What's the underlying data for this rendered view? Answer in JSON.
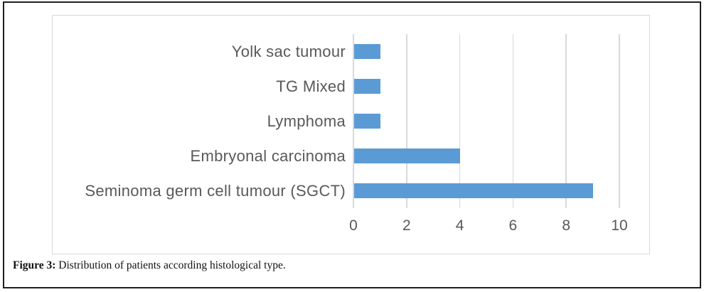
{
  "figure": {
    "caption": {
      "label": "Figure 3:",
      "text": " Distribution of patients according histological type."
    }
  },
  "chart_data": {
    "type": "bar",
    "orientation": "horizontal",
    "title": "",
    "xlabel": "",
    "ylabel": "",
    "categories": [
      "Yolk sac tumour",
      "TG Mixed",
      "Lymphoma",
      "Embryonal carcinoma",
      "Seminoma germ cell tumour (SGCT)"
    ],
    "values": [
      1,
      1,
      1,
      4,
      9
    ],
    "xlim": [
      0,
      10
    ],
    "xticks": [
      0,
      2,
      4,
      6,
      8,
      10
    ],
    "grid": true,
    "legend": false,
    "colors": {
      "bar": "#5B9BD5",
      "gridline": "#d9d9d9",
      "axis_text": "#595959",
      "chart_border": "#d8d8d8",
      "outer_border": "#1f1f1f"
    }
  }
}
